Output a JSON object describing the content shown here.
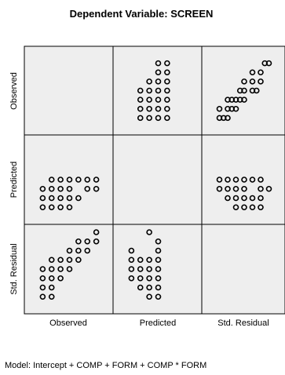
{
  "chart_data": {
    "type": "scatter",
    "subtype": "scatterplot-matrix",
    "title": "Dependent Variable: SCREEN",
    "footnote": "Model: Intercept + COMP + FORM + COMP * FORM",
    "variables": [
      "Observed",
      "Predicted",
      "Std. Residual"
    ],
    "grid": false,
    "panels": [
      {
        "row": "Observed",
        "col": "Predicted",
        "points": [
          [
            2,
            1
          ],
          [
            2,
            2
          ],
          [
            2,
            3
          ],
          [
            2,
            4
          ],
          [
            3,
            1
          ],
          [
            3,
            2
          ],
          [
            3,
            3
          ],
          [
            3,
            4
          ],
          [
            3,
            5
          ],
          [
            4,
            1
          ],
          [
            4,
            2
          ],
          [
            4,
            3
          ],
          [
            4,
            4
          ],
          [
            4,
            5
          ],
          [
            4,
            6
          ],
          [
            4,
            7
          ],
          [
            5,
            1
          ],
          [
            5,
            2
          ],
          [
            5,
            3
          ],
          [
            5,
            4
          ],
          [
            5,
            5
          ],
          [
            5,
            6
          ],
          [
            5,
            7
          ]
        ]
      },
      {
        "row": "Observed",
        "col": "Std. Residual",
        "points": [
          [
            1,
            1
          ],
          [
            1.5,
            1
          ],
          [
            2,
            1
          ],
          [
            1,
            2
          ],
          [
            2,
            2
          ],
          [
            2.5,
            2
          ],
          [
            3,
            2
          ],
          [
            2,
            3
          ],
          [
            2.5,
            3
          ],
          [
            3,
            3
          ],
          [
            3.5,
            3
          ],
          [
            4,
            3
          ],
          [
            3.5,
            4
          ],
          [
            4,
            4
          ],
          [
            5,
            4
          ],
          [
            5.5,
            4
          ],
          [
            4,
            5
          ],
          [
            5,
            5
          ],
          [
            6,
            5
          ],
          [
            5,
            6
          ],
          [
            6,
            6
          ],
          [
            6.5,
            7
          ],
          [
            7,
            7
          ]
        ]
      },
      {
        "row": "Predicted",
        "col": "Observed",
        "points": [
          [
            1,
            1
          ],
          [
            2,
            1
          ],
          [
            3,
            1
          ],
          [
            4,
            1
          ],
          [
            1,
            2
          ],
          [
            2,
            2
          ],
          [
            3,
            2
          ],
          [
            4,
            2
          ],
          [
            5,
            2
          ],
          [
            1,
            3
          ],
          [
            2,
            3
          ],
          [
            3,
            3
          ],
          [
            4,
            3
          ],
          [
            6,
            3
          ],
          [
            7,
            3
          ],
          [
            2,
            4
          ],
          [
            3,
            4
          ],
          [
            4,
            4
          ],
          [
            5,
            4
          ],
          [
            6,
            4
          ],
          [
            7,
            4
          ]
        ]
      },
      {
        "row": "Predicted",
        "col": "Std. Residual",
        "points": [
          [
            3,
            1
          ],
          [
            4,
            1
          ],
          [
            5,
            1
          ],
          [
            6,
            1
          ],
          [
            2,
            2
          ],
          [
            3,
            2
          ],
          [
            4,
            2
          ],
          [
            5,
            2
          ],
          [
            6,
            2
          ],
          [
            1,
            3
          ],
          [
            2,
            3
          ],
          [
            3,
            3
          ],
          [
            4,
            3
          ],
          [
            6,
            3
          ],
          [
            7,
            3
          ],
          [
            1,
            4
          ],
          [
            2,
            4
          ],
          [
            3,
            4
          ],
          [
            4,
            4
          ],
          [
            5,
            4
          ],
          [
            6,
            4
          ]
        ]
      },
      {
        "row": "Std. Residual",
        "col": "Observed",
        "points": [
          [
            1,
            1
          ],
          [
            1,
            2
          ],
          [
            1,
            3
          ],
          [
            1,
            4
          ],
          [
            2,
            1
          ],
          [
            2,
            2
          ],
          [
            2,
            3
          ],
          [
            2,
            4
          ],
          [
            2,
            5
          ],
          [
            3,
            3
          ],
          [
            3,
            4
          ],
          [
            3,
            5
          ],
          [
            4,
            4
          ],
          [
            4,
            5
          ],
          [
            4,
            6
          ],
          [
            5,
            5
          ],
          [
            5,
            6
          ],
          [
            5,
            7
          ],
          [
            6,
            6
          ],
          [
            6,
            7
          ],
          [
            7,
            7
          ],
          [
            7,
            8
          ]
        ]
      },
      {
        "row": "Std. Residual",
        "col": "Predicted",
        "points": [
          [
            1,
            3
          ],
          [
            1,
            4
          ],
          [
            1,
            5
          ],
          [
            1,
            6
          ],
          [
            2,
            2
          ],
          [
            2,
            3
          ],
          [
            2,
            4
          ],
          [
            2,
            5
          ],
          [
            3,
            1
          ],
          [
            3,
            2
          ],
          [
            3,
            3
          ],
          [
            3,
            4
          ],
          [
            3,
            5
          ],
          [
            3,
            8
          ],
          [
            4,
            1
          ],
          [
            4,
            2
          ],
          [
            4,
            3
          ],
          [
            4,
            4
          ],
          [
            4,
            5
          ],
          [
            4,
            6
          ],
          [
            4,
            7
          ]
        ]
      }
    ]
  }
}
